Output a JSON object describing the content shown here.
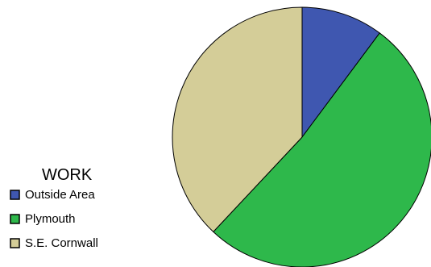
{
  "chart_data": {
    "type": "pie",
    "title": "",
    "legend_title": "WORK",
    "legend_position": "bottom-left",
    "start_angle_deg": 0,
    "direction": "clockwise",
    "slices": [
      {
        "label": "Outside Area",
        "value": 10.2,
        "color": "#3f57b0"
      },
      {
        "label": "Plymouth",
        "value": 51.8,
        "color": "#2eb84b"
      },
      {
        "label": "S.E. Cornwall",
        "value": 38.0,
        "color": "#d4cd98"
      }
    ],
    "unit": "%"
  }
}
